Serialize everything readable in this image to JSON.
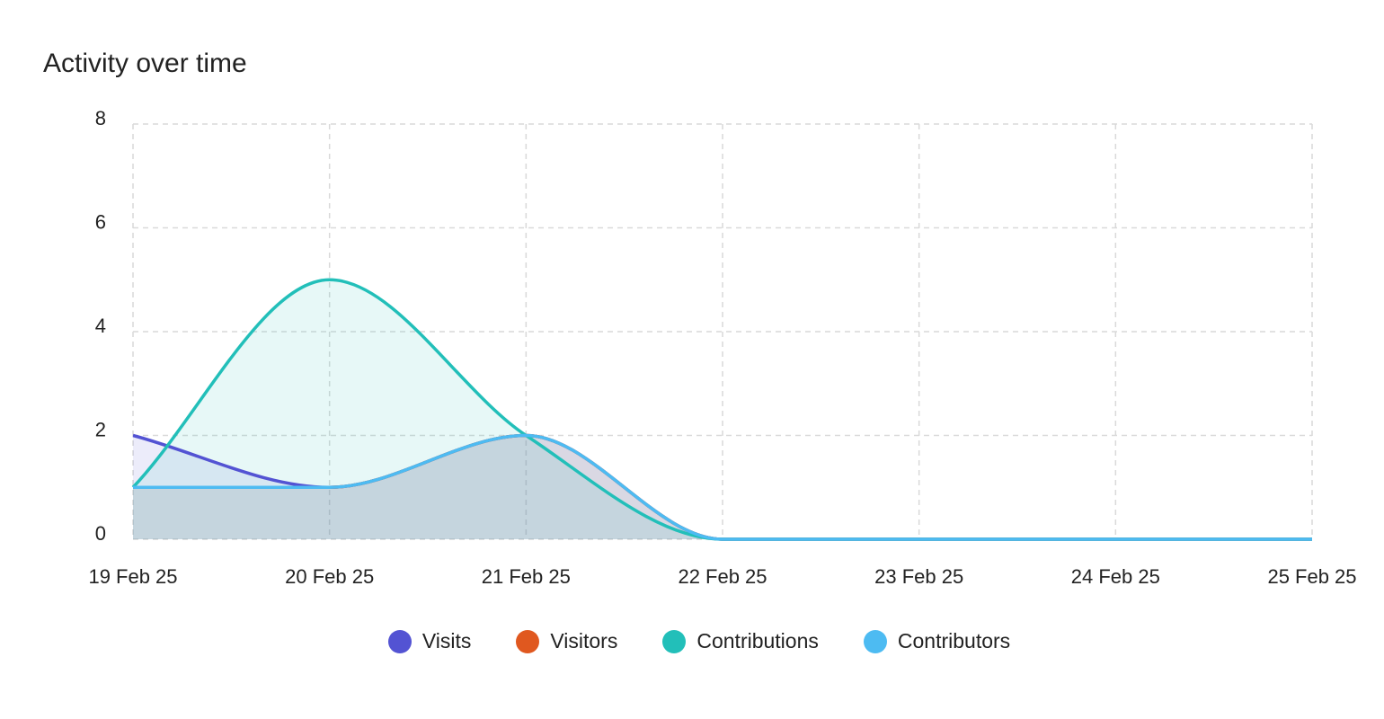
{
  "title": "Activity over time",
  "chart_data": {
    "type": "area",
    "x": [
      "19 Feb 25",
      "20 Feb 25",
      "21 Feb 25",
      "22 Feb 25",
      "23 Feb 25",
      "24 Feb 25",
      "25 Feb 25"
    ],
    "ylim": [
      0,
      8
    ],
    "yticks": [
      0,
      2,
      4,
      6,
      8
    ],
    "grid": true,
    "legend_position": "bottom",
    "series": [
      {
        "name": "Visits",
        "color": "#5353D3",
        "values": [
          2,
          1,
          2,
          0,
          0,
          0,
          0
        ]
      },
      {
        "name": "Visitors",
        "color": "#E0581F",
        "values": [
          1,
          1,
          2,
          0,
          0,
          0,
          0
        ]
      },
      {
        "name": "Contributions",
        "color": "#22BFB9",
        "values": [
          1,
          5,
          2,
          0,
          0,
          0,
          0
        ]
      },
      {
        "name": "Contributors",
        "color": "#4DBBF2",
        "values": [
          1,
          1,
          2,
          0,
          0,
          0,
          0
        ]
      }
    ]
  }
}
